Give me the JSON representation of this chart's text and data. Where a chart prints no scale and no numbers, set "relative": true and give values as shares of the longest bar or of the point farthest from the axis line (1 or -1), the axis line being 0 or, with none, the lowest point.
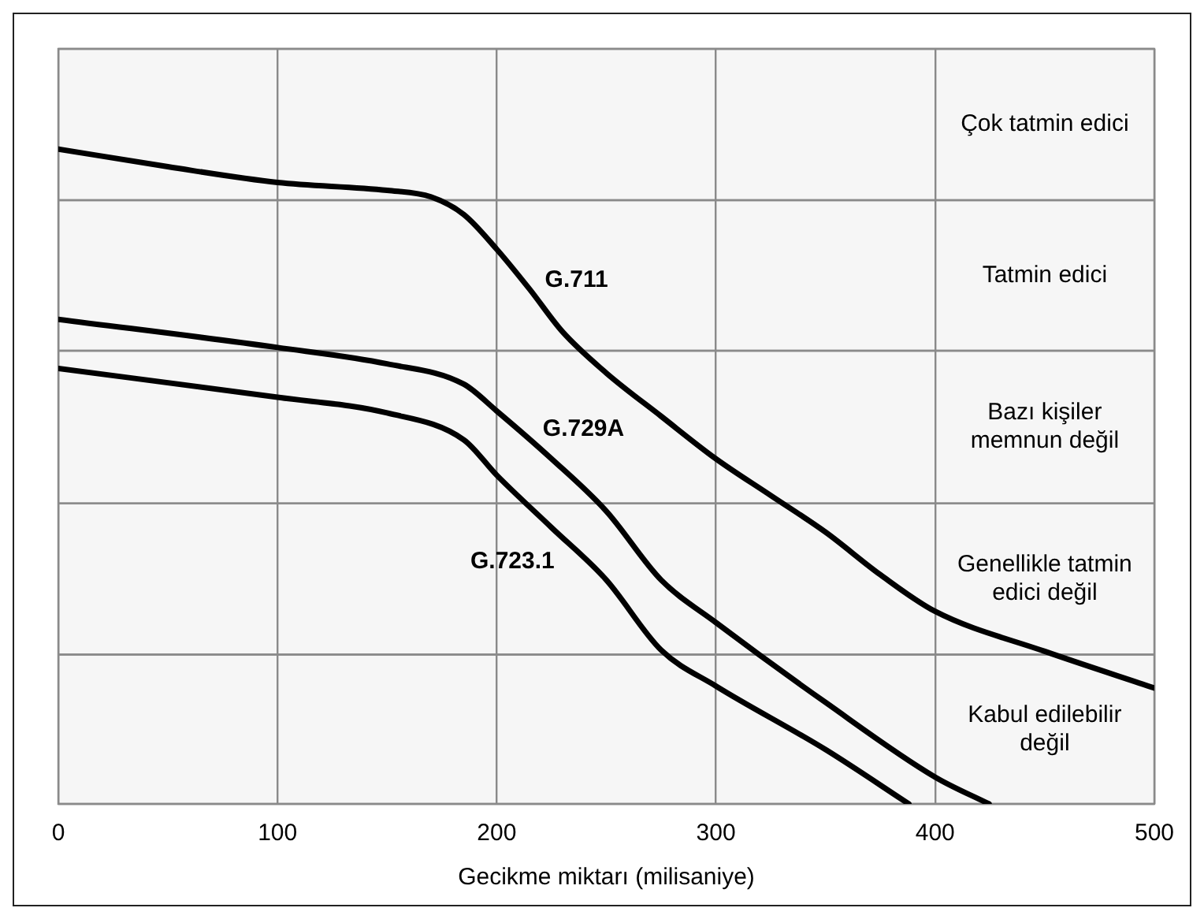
{
  "chart_data": {
    "type": "line",
    "relative": true,
    "xlabel": "Gecikme miktarı (milisaniye)",
    "xlim": [
      0,
      500
    ],
    "xticks": [
      0,
      100,
      200,
      300,
      400,
      500
    ],
    "grid": "x",
    "legend": false,
    "marker": "none",
    "line_style": "solid",
    "series": [
      {
        "name": "G.711",
        "color": "#000000",
        "x": [
          0,
          50,
          100,
          150,
          170,
          185,
          200,
          215,
          230,
          250,
          275,
          300,
          325,
          350,
          375,
          400,
          450,
          500
        ],
        "values": [
          1.0,
          0.973,
          0.949,
          0.937,
          0.927,
          0.9,
          0.847,
          0.786,
          0.721,
          0.658,
          0.592,
          0.527,
          0.471,
          0.415,
          0.35,
          0.294,
          0.233,
          0.177
        ]
      },
      {
        "name": "G.729A",
        "color": "#000000",
        "x": [
          0,
          100,
          150,
          185,
          200,
          225,
          250,
          275,
          300,
          350,
          400,
          424.6
        ],
        "values": [
          0.74,
          0.697,
          0.672,
          0.641,
          0.6,
          0.527,
          0.447,
          0.342,
          0.277,
          0.155,
          0.041,
          0
        ]
      },
      {
        "name": "G.723.1",
        "color": "#000000",
        "x": [
          0,
          100,
          150,
          185,
          200,
          225,
          250,
          275,
          300,
          350,
          388
        ],
        "values": [
          0.665,
          0.621,
          0.597,
          0.556,
          0.502,
          0.422,
          0.342,
          0.235,
          0.18,
          0.083,
          0
        ]
      }
    ],
    "bands": [
      {
        "axis": "y",
        "from": 0.922,
        "to": 1.153,
        "label": "Çok tatmin edici",
        "color": "#f6f6f6"
      },
      {
        "axis": "y",
        "from": 0.692,
        "to": 0.922,
        "label": "Tatmin edici",
        "color": "#f6f6f6"
      },
      {
        "axis": "y",
        "from": 0.459,
        "to": 0.692,
        "label": "Bazı kişiler memnun değil",
        "color": "#f6f6f6"
      },
      {
        "axis": "y",
        "from": 0.228,
        "to": 0.459,
        "label": "Genellikle tatmin edici değil",
        "color": "#f6f6f6"
      },
      {
        "axis": "y",
        "from": 0,
        "to": 0.228,
        "label": "Kabul edilebilir değil",
        "color": "#f6f6f6"
      }
    ]
  }
}
